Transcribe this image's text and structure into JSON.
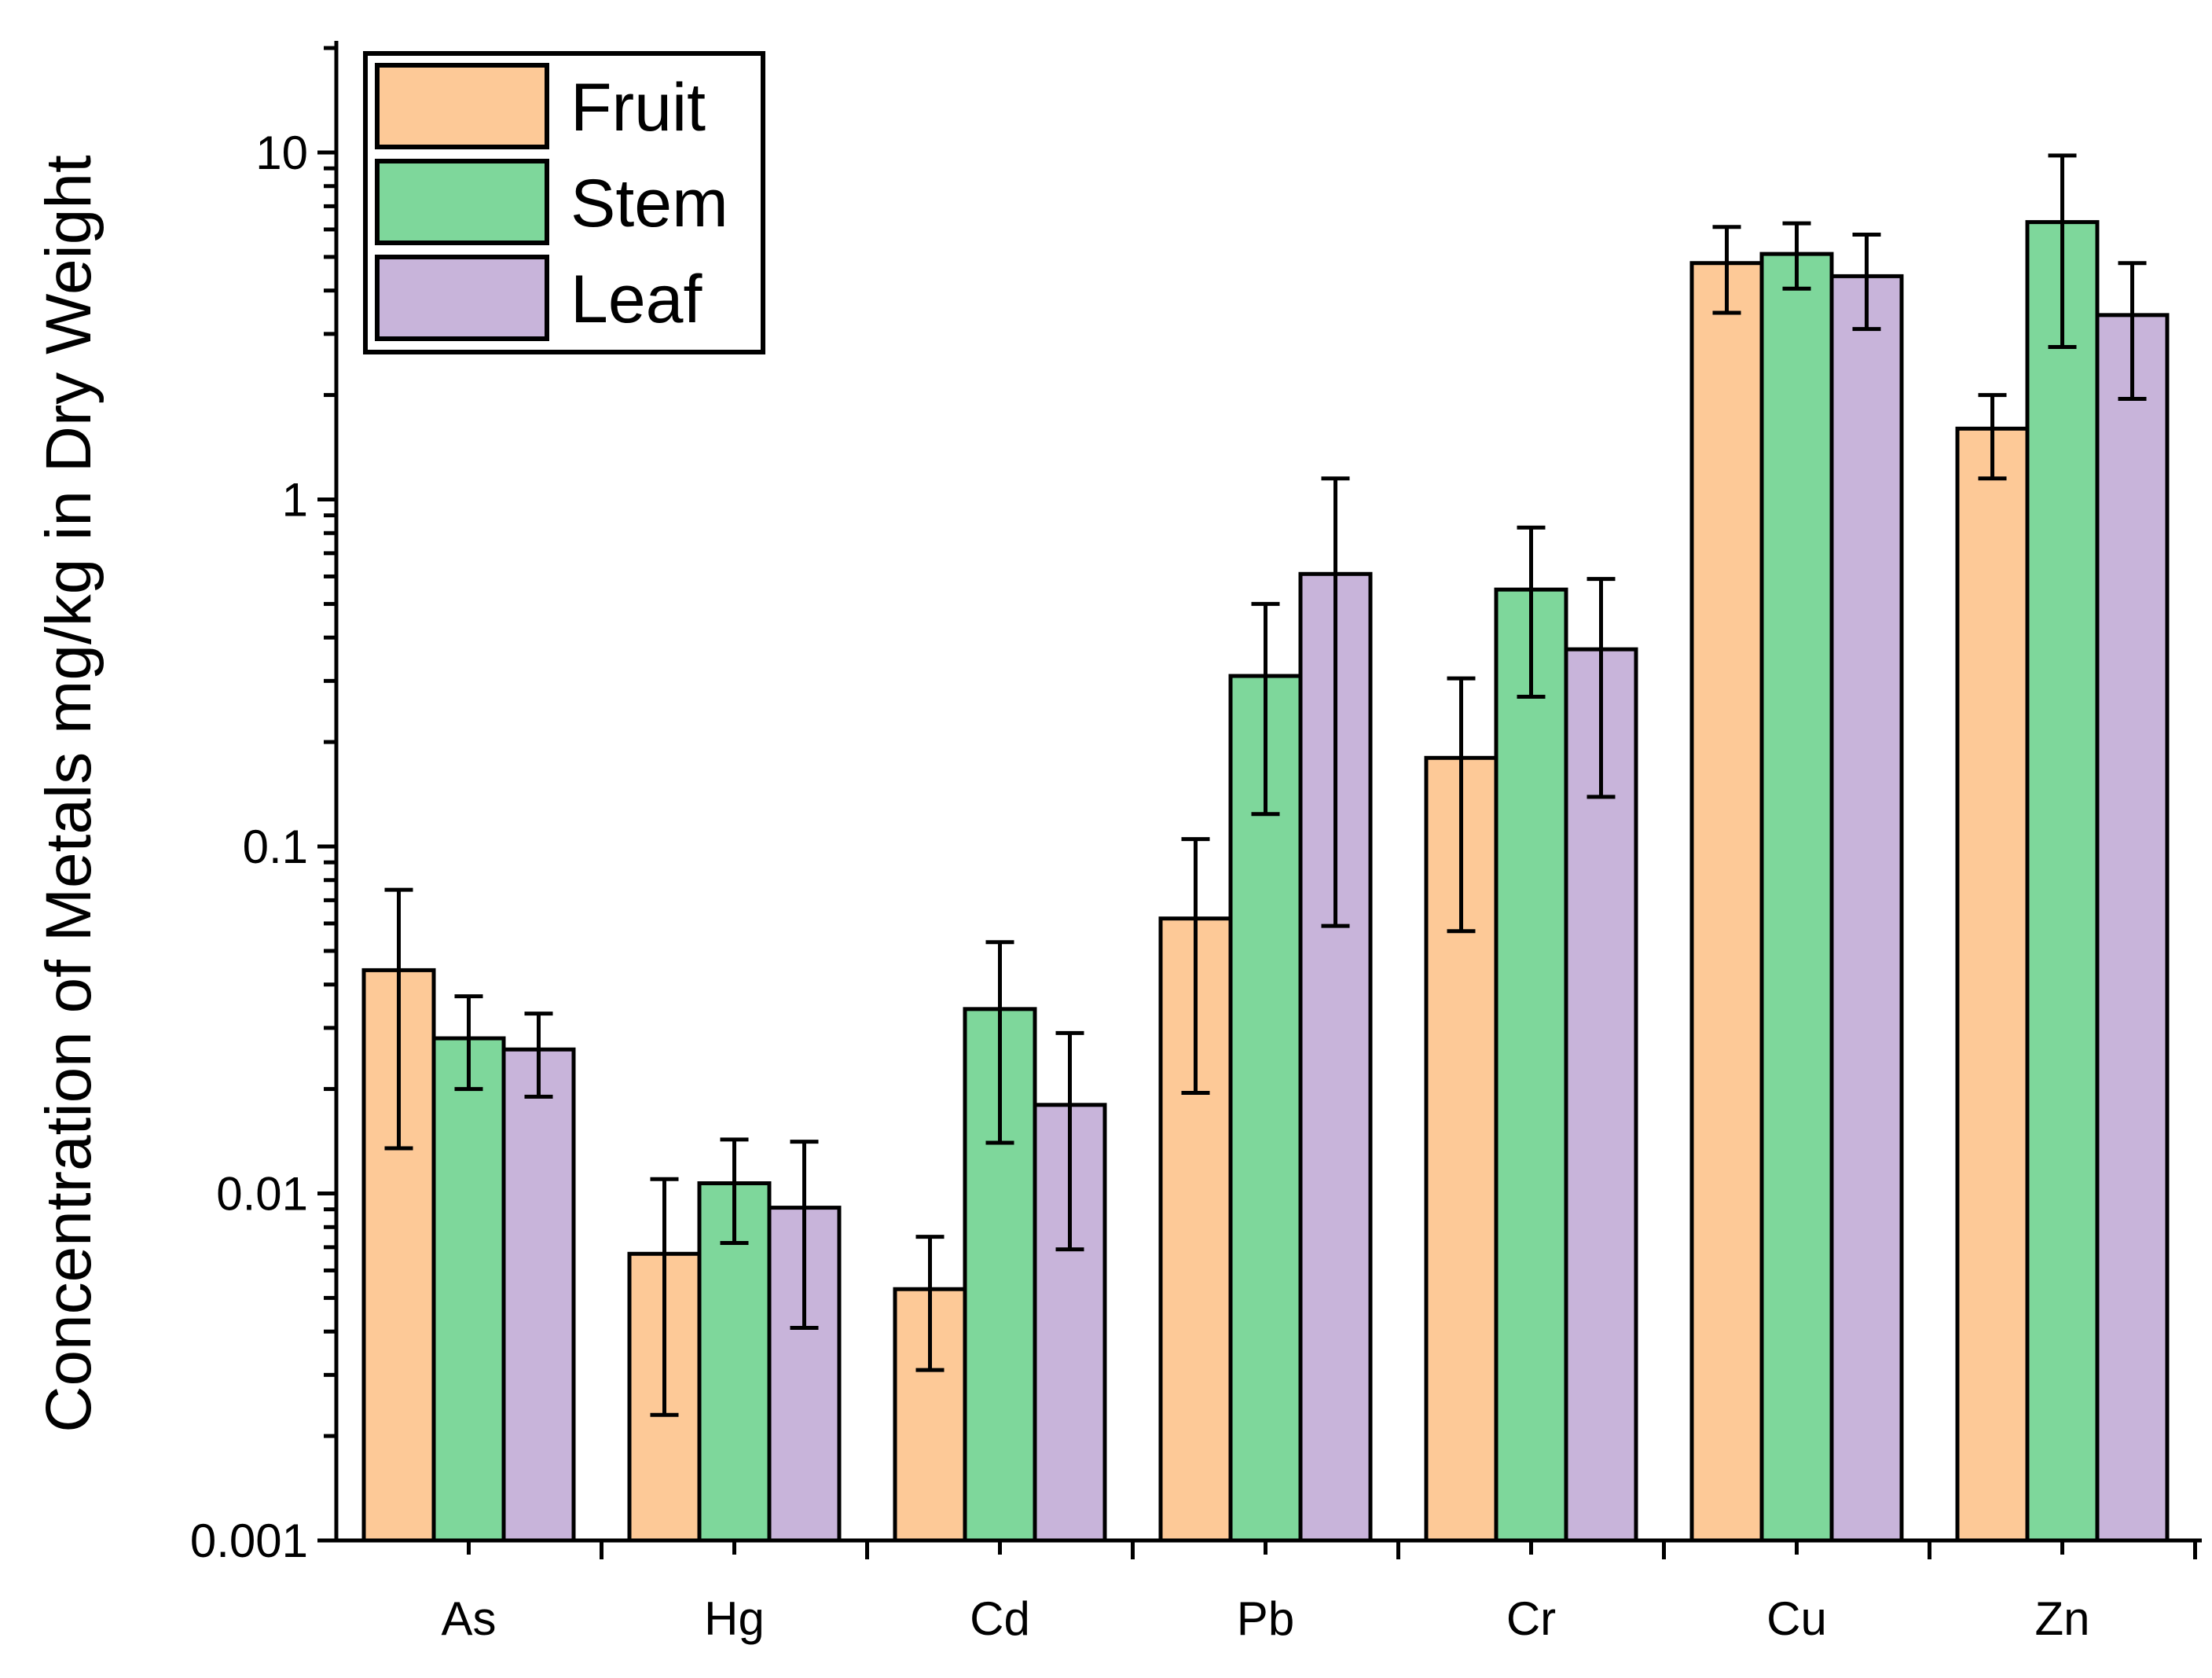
{
  "chart_data": {
    "type": "bar",
    "title": "",
    "xlabel": "",
    "ylabel": "Concentration of Metals mg/kg in Dry Weight",
    "yscale": "log",
    "ylim": [
      0.001,
      20
    ],
    "grid": false,
    "legend_position": "top-left",
    "categories": [
      "As",
      "Hg",
      "Cd",
      "Pb",
      "Cr",
      "Cu",
      "Zn"
    ],
    "yticks": [
      {
        "value": 0.001,
        "label": "0.001"
      },
      {
        "value": 0.01,
        "label": "0.01"
      },
      {
        "value": 0.1,
        "label": "0.1"
      },
      {
        "value": 1,
        "label": "1"
      },
      {
        "value": 10,
        "label": "10"
      }
    ],
    "series": [
      {
        "name": "Fruit",
        "color": "#FDC997",
        "values": [
          0.044,
          0.0067,
          0.0053,
          0.062,
          0.18,
          4.8,
          1.6
        ],
        "err_low": [
          0.0135,
          0.0023,
          0.0031,
          0.0195,
          0.057,
          3.45,
          1.15
        ],
        "err_high": [
          0.075,
          0.011,
          0.0075,
          0.105,
          0.305,
          6.1,
          2.0
        ]
      },
      {
        "name": "Stem",
        "color": "#7ED79B",
        "values": [
          0.028,
          0.0107,
          0.034,
          0.31,
          0.55,
          5.1,
          6.3
        ],
        "err_low": [
          0.02,
          0.0072,
          0.014,
          0.124,
          0.27,
          4.05,
          2.75
        ],
        "err_high": [
          0.037,
          0.0143,
          0.053,
          0.5,
          0.83,
          6.25,
          9.8
        ]
      },
      {
        "name": "Leaf",
        "color": "#C8B4DA",
        "values": [
          0.026,
          0.0091,
          0.018,
          0.61,
          0.37,
          4.4,
          3.4
        ],
        "err_low": [
          0.019,
          0.0041,
          0.0069,
          0.059,
          0.139,
          3.1,
          1.95
        ],
        "err_high": [
          0.033,
          0.0141,
          0.029,
          1.15,
          0.59,
          5.8,
          4.8
        ]
      }
    ]
  }
}
